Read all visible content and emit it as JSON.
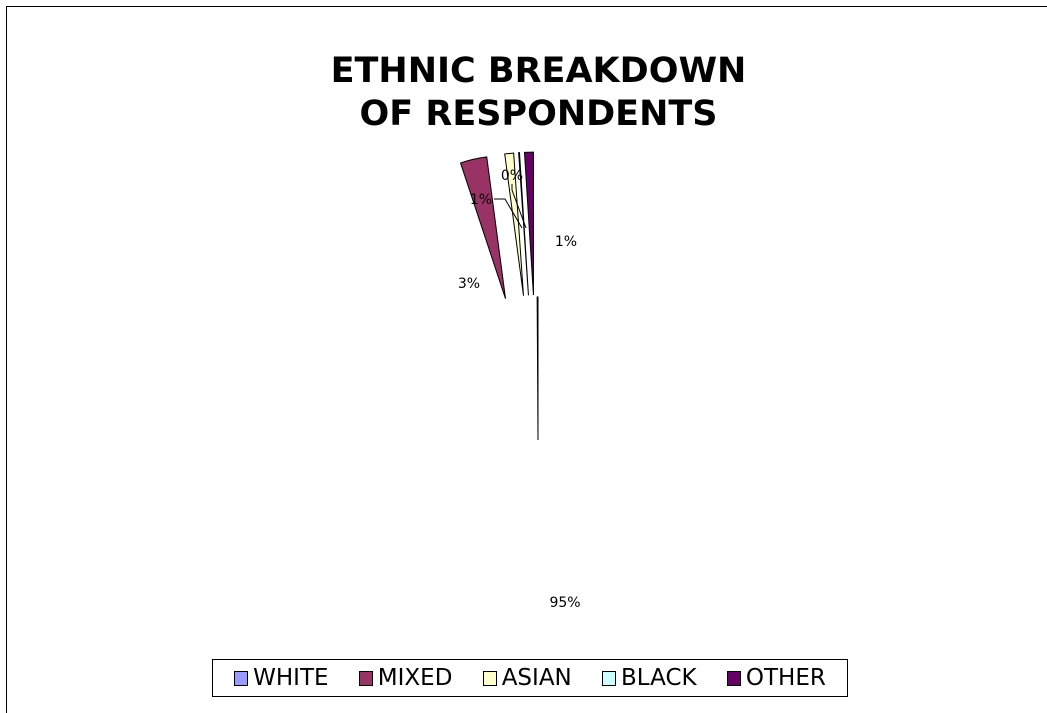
{
  "chart_data": {
    "type": "pie",
    "title": [
      "ETHNIC BREAKDOWN",
      "OF RESPONDENTS"
    ],
    "categories": [
      "WHITE",
      "MIXED",
      "ASIAN",
      "BLACK",
      "OTHER"
    ],
    "values": [
      95,
      3,
      1,
      0,
      1
    ],
    "data_labels": [
      "95%",
      "3%",
      "1%",
      "0%",
      "1%"
    ],
    "colors": [
      "#9999FF",
      "#993366",
      "#FFFFCC",
      "#CCFFFF",
      "#660066"
    ],
    "legend_position": "bottom"
  }
}
